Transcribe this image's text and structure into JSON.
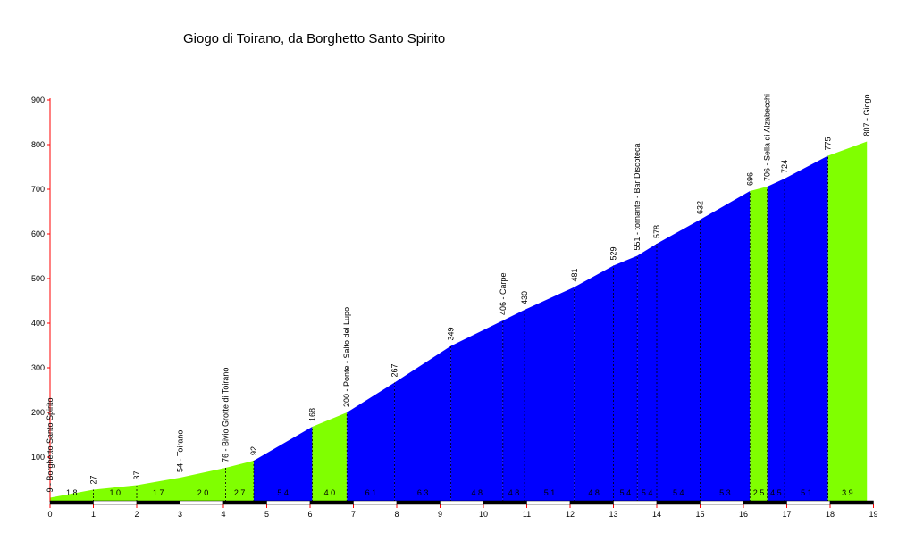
{
  "chart_data": {
    "type": "area",
    "title": "Giogo di Toirano, da Borghetto Santo Spirito",
    "xlabel": "",
    "ylabel": "",
    "xlim": [
      0,
      19
    ],
    "ylim": [
      0,
      900
    ],
    "x_ticks": [
      "0",
      "1",
      "2",
      "3",
      "4",
      "5",
      "6",
      "7",
      "8",
      "9",
      "10",
      "11",
      "12",
      "13",
      "14",
      "15",
      "16",
      "17",
      "18",
      "19"
    ],
    "y_ticks": [
      "100",
      "200",
      "300",
      "400",
      "500",
      "600",
      "700",
      "800",
      "900"
    ],
    "colors": {
      "green": "#80ff00",
      "blue": "#0000ff",
      "axis": "#ff0000",
      "line": "#000000"
    },
    "profile": [
      {
        "x": 0,
        "y": 9,
        "label": "9 - Borghetto Santo Spirito"
      },
      {
        "x": 1,
        "y": 27,
        "label": "27"
      },
      {
        "x": 2,
        "y": 37,
        "label": "37"
      },
      {
        "x": 3,
        "y": 54,
        "label": "54 - Toirano"
      },
      {
        "x": 4.05,
        "y": 76,
        "label": "76 - Bivio Grotte di Toirano"
      },
      {
        "x": 4.7,
        "y": 92,
        "label": "92"
      },
      {
        "x": 6.05,
        "y": 168,
        "label": "168"
      },
      {
        "x": 6.85,
        "y": 200,
        "label": "200 - Ponte - Salto del Lupo"
      },
      {
        "x": 7.95,
        "y": 267,
        "label": "267"
      },
      {
        "x": 9.25,
        "y": 349,
        "label": "349"
      },
      {
        "x": 10.45,
        "y": 406,
        "label": "406 - Carpe"
      },
      {
        "x": 10.95,
        "y": 430,
        "label": "430"
      },
      {
        "x": 12.1,
        "y": 481,
        "label": "481"
      },
      {
        "x": 13.0,
        "y": 529,
        "label": "529"
      },
      {
        "x": 13.55,
        "y": 551,
        "label": "551 - tornante - Bar Discoteca"
      },
      {
        "x": 14.0,
        "y": 578,
        "label": "578"
      },
      {
        "x": 15.0,
        "y": 632,
        "label": "632"
      },
      {
        "x": 16.15,
        "y": 696,
        "label": "696"
      },
      {
        "x": 16.55,
        "y": 706,
        "label": "706 - Sella di Alzabecchi"
      },
      {
        "x": 16.95,
        "y": 724,
        "label": "724"
      },
      {
        "x": 17.95,
        "y": 775,
        "label": "775"
      },
      {
        "x": 18.85,
        "y": 807,
        "label": "807 - Giogo"
      }
    ],
    "segments": [
      {
        "grade": "1.8",
        "color": "green"
      },
      {
        "grade": "1.0",
        "color": "green"
      },
      {
        "grade": "1.7",
        "color": "green"
      },
      {
        "grade": "2.0",
        "color": "green"
      },
      {
        "grade": "2.7",
        "color": "green"
      },
      {
        "grade": "5.4",
        "color": "blue"
      },
      {
        "grade": "4.0",
        "color": "green"
      },
      {
        "grade": "6.1",
        "color": "blue"
      },
      {
        "grade": "6.3",
        "color": "blue"
      },
      {
        "grade": "4.8",
        "color": "blue"
      },
      {
        "grade": "4.8",
        "color": "blue"
      },
      {
        "grade": "5.1",
        "color": "blue"
      },
      {
        "grade": "4.8",
        "color": "blue"
      },
      {
        "grade": "5.4",
        "color": "blue"
      },
      {
        "grade": "5.4",
        "color": "blue"
      },
      {
        "grade": "5.4",
        "color": "blue"
      },
      {
        "grade": "5.3",
        "color": "blue"
      },
      {
        "grade": "2.5",
        "color": "green"
      },
      {
        "grade": "4.5",
        "color": "blue"
      },
      {
        "grade": "5.1",
        "color": "blue"
      },
      {
        "grade": "3.9",
        "color": "green"
      }
    ]
  }
}
